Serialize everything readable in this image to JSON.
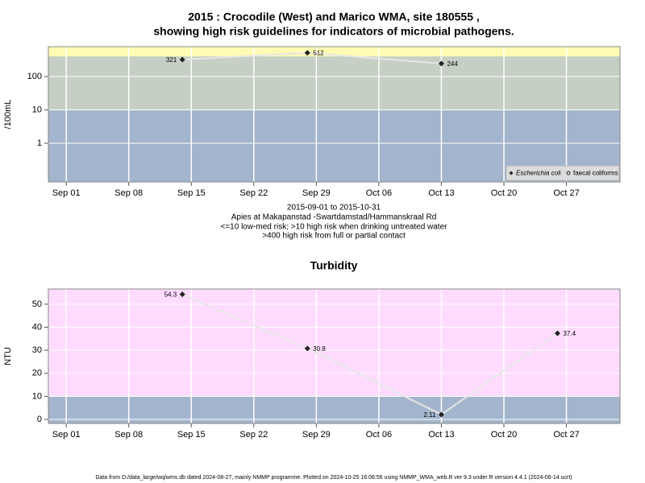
{
  "chart_data": [
    {
      "type": "line",
      "title_lines": [
        "2015 : Crocodile (West) and Marico WMA, site 180555 ,",
        "showing high risk guidelines for indicators of microbial pathogens."
      ],
      "ylabel": "/100mL",
      "notes": [
        "2015-09-01 to 2015-10-31",
        "Apies at Makapanstad -Swartdamstad/Hammanskraal Rd",
        "<=10 low-med risk; >10 high risk when drinking untreated water",
        ">400 high risk from full or partial contact"
      ],
      "x": [
        "2015-09-14",
        "2015-09-28",
        "2015-10-13"
      ],
      "series": [
        {
          "name": "Escherichia coli",
          "color": "#222222",
          "marker": "diamond",
          "values": [
            321,
            512,
            244
          ]
        },
        {
          "name": "faecal coliforms",
          "color": "#222222",
          "marker": "circle",
          "values": [
            null,
            null,
            null
          ]
        }
      ],
      "log_scale": true,
      "ylim": [
        0.07,
        780
      ],
      "yticks": [
        1,
        10,
        100
      ],
      "xlim": [
        "2015-08-30",
        "2015-11-02"
      ],
      "xticks": [
        {
          "value": "2015-09-01",
          "label": "Sep 01"
        },
        {
          "value": "2015-09-08",
          "label": "Sep 08"
        },
        {
          "value": "2015-09-15",
          "label": "Sep 15"
        },
        {
          "value": "2015-09-22",
          "label": "Sep 22"
        },
        {
          "value": "2015-09-29",
          "label": "Sep 29"
        },
        {
          "value": "2015-10-06",
          "label": "Oct 06"
        },
        {
          "value": "2015-10-13",
          "label": "Oct 13"
        },
        {
          "value": "2015-10-20",
          "label": "Oct 20"
        },
        {
          "value": "2015-10-27",
          "label": "Oct 27"
        }
      ],
      "thresholds": [
        10,
        400
      ],
      "band_colors": [
        "#a3b5cd",
        "#c5cfc4",
        "#fffbb4"
      ],
      "line_color": "#e6e6e6",
      "grid": true,
      "legend": "bottom-right"
    },
    {
      "type": "line",
      "title_lines": [
        "Turbidity"
      ],
      "ylabel": "NTU",
      "x": [
        "2015-09-14",
        "2015-09-28",
        "2015-10-13",
        "2015-10-26"
      ],
      "series": [
        {
          "name": "Turbidity",
          "color": "#222222",
          "marker": "diamond",
          "values": [
            54.3,
            30.8,
            2.11,
            37.4
          ]
        }
      ],
      "log_scale": false,
      "ylim": [
        -1.75,
        56.6
      ],
      "yticks": [
        0,
        10,
        20,
        30,
        40,
        50
      ],
      "xlim": [
        "2015-08-30",
        "2015-11-02"
      ],
      "xticks": [
        {
          "value": "2015-09-01",
          "label": "Sep 01"
        },
        {
          "value": "2015-09-08",
          "label": "Sep 08"
        },
        {
          "value": "2015-09-15",
          "label": "Sep 15"
        },
        {
          "value": "2015-09-22",
          "label": "Sep 22"
        },
        {
          "value": "2015-09-29",
          "label": "Sep 29"
        },
        {
          "value": "2015-10-06",
          "label": "Oct 06"
        },
        {
          "value": "2015-10-13",
          "label": "Oct 13"
        },
        {
          "value": "2015-10-20",
          "label": "Oct 20"
        },
        {
          "value": "2015-10-27",
          "label": "Oct 27"
        }
      ],
      "thresholds": [
        10
      ],
      "band_colors": [
        "#a3b5cd",
        "#ffdcff"
      ],
      "line_color": "#e6e6e6",
      "grid": true
    }
  ],
  "footer": "Data from D:/data_large/wq/wms.db dated 2024-08-27, mainly NMMP programme. Plotted on 2024-10-25 16:06:56 using NMMP_WMA_web.R ver 9.3 under R version 4.4.1 (2024-06-14 ucrt)"
}
